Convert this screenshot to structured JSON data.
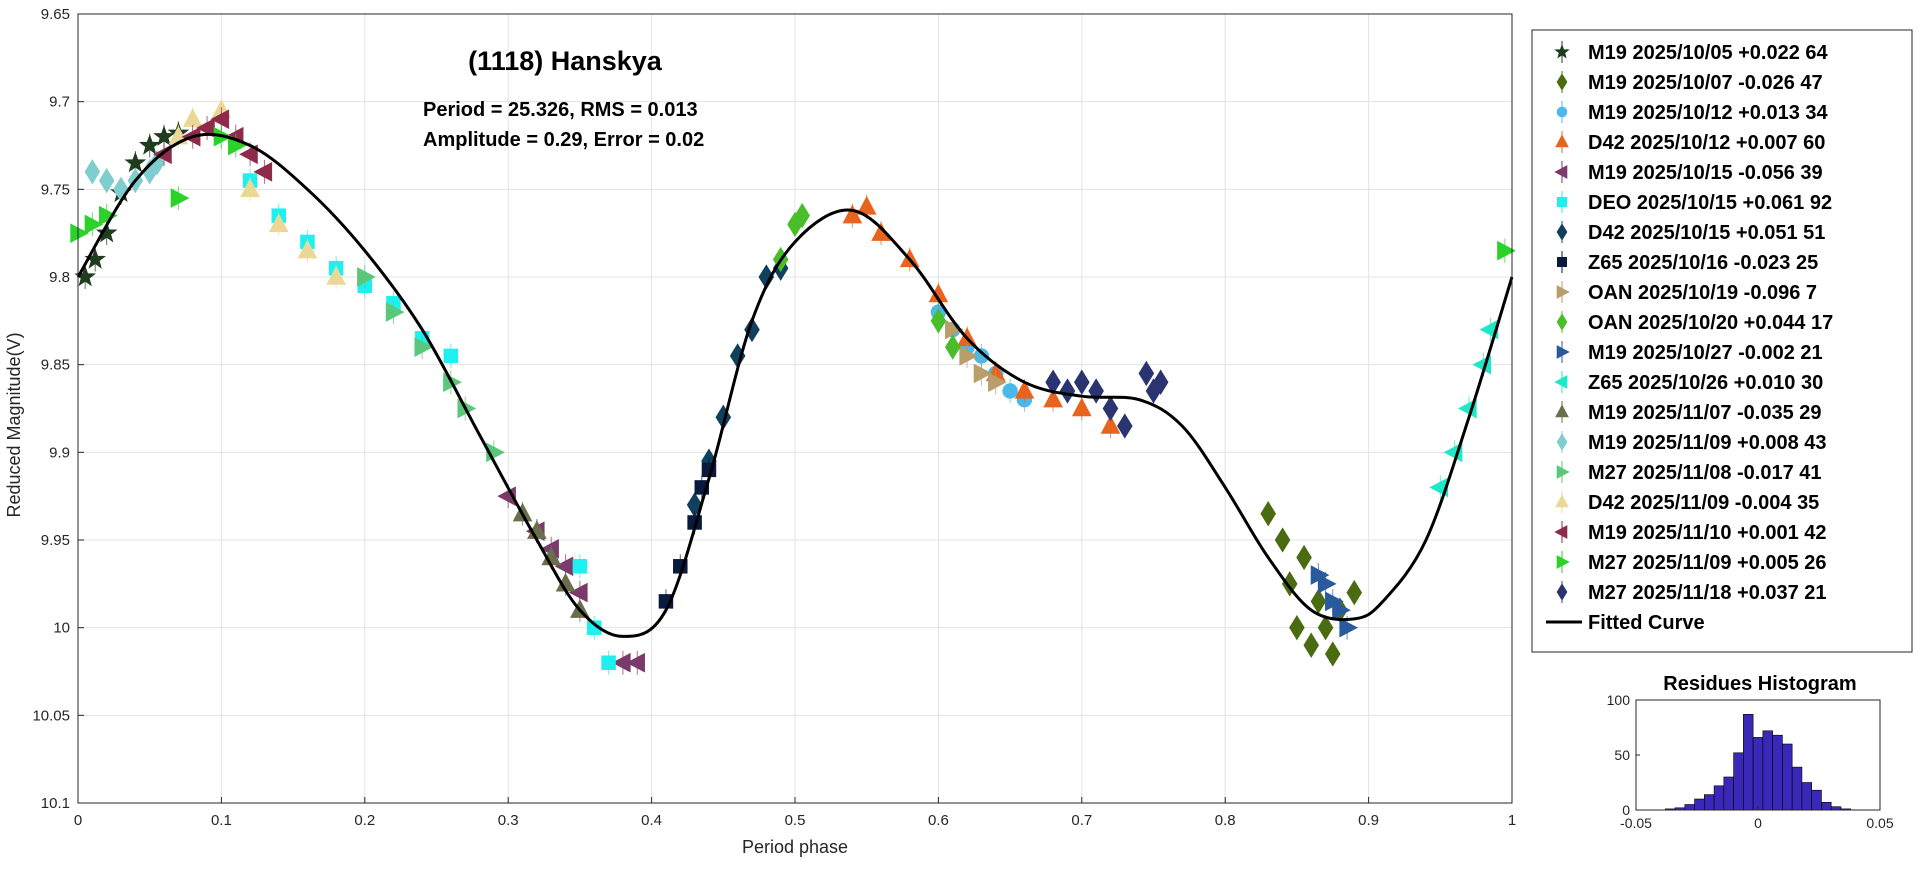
{
  "chart_data": [
    {
      "type": "scatter",
      "title": "(1118) Hanskya",
      "subtitle_lines": [
        "Period =  25.326, RMS = 0.013",
        "Amplitude = 0.29, Error = 0.02"
      ],
      "xlabel": "Period phase",
      "ylabel": "Reduced Magnitude(V)",
      "xlim": [
        0,
        1
      ],
      "ylim": [
        9.65,
        10.1
      ],
      "y_reversed": true,
      "grid": true,
      "xticks": [
        "0",
        "0.1",
        "0.2",
        "0.3",
        "0.4",
        "0.5",
        "0.6",
        "0.7",
        "0.8",
        "0.9",
        "1"
      ],
      "yticks": [
        "9.65",
        "9.7",
        "9.75",
        "9.8",
        "9.85",
        "9.9",
        "9.95",
        "10",
        "10.05",
        "10.1"
      ],
      "legend_position": "outside-right",
      "series": [
        {
          "name": "M19 2025/10/05   +0.022    64",
          "color": "#1e3d1e",
          "marker": "star",
          "x": [
            0.005,
            0.012,
            0.02,
            0.03,
            0.04,
            0.05,
            0.06,
            0.07
          ],
          "y": [
            9.8,
            9.79,
            9.775,
            9.752,
            9.735,
            9.725,
            9.72,
            9.718
          ]
        },
        {
          "name": "M19 2025/10/07   -0.026    47",
          "color": "#4b6b10",
          "marker": "diamond",
          "x": [
            0.83,
            0.84,
            0.845,
            0.85,
            0.855,
            0.86,
            0.865,
            0.87,
            0.875,
            0.88,
            0.89
          ],
          "y": [
            9.935,
            9.95,
            9.975,
            10.0,
            9.96,
            10.01,
            9.985,
            10.0,
            10.015,
            9.99,
            9.98
          ]
        },
        {
          "name": "M19 2025/10/12   +0.013    34",
          "color": "#4ab8e8",
          "marker": "circle",
          "x": [
            0.6,
            0.61,
            0.62,
            0.63,
            0.64,
            0.65,
            0.66
          ],
          "y": [
            9.82,
            9.83,
            9.84,
            9.845,
            9.855,
            9.865,
            9.87
          ]
        },
        {
          "name": "D42 2025/10/12   +0.007    60",
          "color": "#e8641e",
          "marker": "triangle-up",
          "x": [
            0.54,
            0.55,
            0.56,
            0.58,
            0.6,
            0.62,
            0.64,
            0.66,
            0.68,
            0.7,
            0.72
          ],
          "y": [
            9.765,
            9.76,
            9.775,
            9.79,
            9.81,
            9.835,
            9.855,
            9.865,
            9.87,
            9.875,
            9.885
          ]
        },
        {
          "name": "M19 2025/10/15   -0.056    39",
          "color": "#7a3a6a",
          "marker": "triangle-left",
          "x": [
            0.3,
            0.32,
            0.33,
            0.34,
            0.35,
            0.38,
            0.39
          ],
          "y": [
            9.925,
            9.945,
            9.955,
            9.965,
            9.98,
            10.02,
            10.02
          ]
        },
        {
          "name": "DEO 2025/10/15   +0.061    92",
          "color": "#1ef0f0",
          "marker": "square",
          "x": [
            0.12,
            0.14,
            0.16,
            0.18,
            0.2,
            0.22,
            0.24,
            0.26,
            0.35,
            0.36,
            0.37
          ],
          "y": [
            9.745,
            9.765,
            9.78,
            9.795,
            9.805,
            9.815,
            9.835,
            9.845,
            9.965,
            10.0,
            10.02
          ]
        },
        {
          "name": "D42 2025/10/15   +0.051    51",
          "color": "#10405e",
          "marker": "diamond",
          "x": [
            0.43,
            0.44,
            0.45,
            0.46,
            0.47,
            0.48,
            0.49
          ],
          "y": [
            9.93,
            9.905,
            9.88,
            9.845,
            9.83,
            9.8,
            9.795
          ]
        },
        {
          "name": "Z65 2025/10/16   -0.023    25",
          "color": "#0a1a3e",
          "marker": "square",
          "x": [
            0.41,
            0.42,
            0.43,
            0.435,
            0.44
          ],
          "y": [
            9.985,
            9.965,
            9.94,
            9.92,
            9.91
          ]
        },
        {
          "name": "OAN 2025/10/19   -0.096     7",
          "color": "#b89e6a",
          "marker": "triangle-right",
          "x": [
            0.61,
            0.62,
            0.63,
            0.64
          ],
          "y": [
            9.83,
            9.845,
            9.855,
            9.86
          ]
        },
        {
          "name": "OAN 2025/10/20   +0.044    17",
          "color": "#4abe2a",
          "marker": "diamond",
          "x": [
            0.49,
            0.5,
            0.505,
            0.6,
            0.61
          ],
          "y": [
            9.79,
            9.77,
            9.765,
            9.825,
            9.84
          ]
        },
        {
          "name": "M19 2025/10/27   -0.002    21",
          "color": "#2a5a9e",
          "marker": "triangle-right",
          "x": [
            0.865,
            0.87,
            0.875,
            0.88,
            0.885
          ],
          "y": [
            9.97,
            9.975,
            9.985,
            9.99,
            10.0
          ]
        },
        {
          "name": "Z65 2025/10/26   +0.010    30",
          "color": "#1ee8c8",
          "marker": "triangle-left",
          "x": [
            0.95,
            0.96,
            0.97,
            0.98,
            0.985
          ],
          "y": [
            9.92,
            9.9,
            9.875,
            9.85,
            9.83
          ]
        },
        {
          "name": "M19 2025/11/07   -0.035    29",
          "color": "#6a6e4a",
          "marker": "triangle-up",
          "x": [
            0.31,
            0.32,
            0.33,
            0.34,
            0.35
          ],
          "y": [
            9.935,
            9.945,
            9.96,
            9.975,
            9.99
          ]
        },
        {
          "name": "M19 2025/11/09   +0.008    43",
          "color": "#7ecece",
          "marker": "diamond",
          "x": [
            0.01,
            0.02,
            0.03,
            0.04,
            0.05,
            0.055
          ],
          "y": [
            9.74,
            9.745,
            9.75,
            9.745,
            9.74,
            9.735
          ]
        },
        {
          "name": "M27 2025/11/08   -0.017    41",
          "color": "#5ac87a",
          "marker": "triangle-right",
          "x": [
            0.2,
            0.22,
            0.24,
            0.26,
            0.27,
            0.29
          ],
          "y": [
            9.8,
            9.82,
            9.84,
            9.86,
            9.875,
            9.9
          ]
        },
        {
          "name": "D42 2025/11/09   -0.004    35",
          "color": "#ecd896",
          "marker": "triangle-up",
          "x": [
            0.07,
            0.08,
            0.1,
            0.12,
            0.14,
            0.16,
            0.18
          ],
          "y": [
            9.72,
            9.71,
            9.705,
            9.75,
            9.77,
            9.785,
            9.8
          ]
        },
        {
          "name": "M19 2025/11/10   +0.001    42",
          "color": "#8e2a4a",
          "marker": "triangle-left",
          "x": [
            0.06,
            0.08,
            0.09,
            0.1,
            0.11,
            0.12,
            0.13
          ],
          "y": [
            9.73,
            9.72,
            9.715,
            9.71,
            9.72,
            9.73,
            9.74
          ]
        },
        {
          "name": "M27 2025/11/09   +0.005    26",
          "color": "#2ad22a",
          "marker": "triangle-right",
          "x": [
            0.0,
            0.01,
            0.02,
            0.07,
            0.1,
            0.11,
            0.995
          ],
          "y": [
            9.775,
            9.77,
            9.765,
            9.755,
            9.72,
            9.725,
            9.785
          ]
        },
        {
          "name": "M27 2025/11/18   +0.037    21",
          "color": "#2a3470",
          "marker": "diamond",
          "x": [
            0.68,
            0.69,
            0.7,
            0.71,
            0.72,
            0.73,
            0.745,
            0.75,
            0.755
          ],
          "y": [
            9.86,
            9.865,
            9.86,
            9.865,
            9.875,
            9.885,
            9.855,
            9.865,
            9.86
          ]
        }
      ],
      "fitted_curve": {
        "name": "Fitted Curve",
        "color": "#000000",
        "x": [
          0.0,
          0.04,
          0.08,
          0.12,
          0.16,
          0.2,
          0.24,
          0.28,
          0.32,
          0.35,
          0.38,
          0.41,
          0.44,
          0.47,
          0.5,
          0.54,
          0.58,
          0.62,
          0.66,
          0.7,
          0.74,
          0.77,
          0.8,
          0.83,
          0.86,
          0.89,
          0.91,
          0.94,
          0.97,
          1.0
        ],
        "y": [
          9.8,
          9.745,
          9.72,
          9.725,
          9.75,
          9.785,
          9.83,
          9.89,
          9.95,
          9.99,
          10.005,
          9.99,
          9.915,
          9.825,
          9.78,
          9.762,
          9.79,
          9.835,
          9.86,
          9.868,
          9.87,
          9.885,
          9.92,
          9.96,
          9.99,
          9.995,
          9.985,
          9.95,
          9.88,
          9.8
        ]
      }
    },
    {
      "type": "bar",
      "title": "Residues Histogram",
      "xlim": [
        -0.05,
        0.05
      ],
      "ylim": [
        0,
        100
      ],
      "xticks": [
        "-0.05",
        "0",
        "0.05"
      ],
      "yticks": [
        "0",
        "50",
        "100"
      ],
      "color": "#3a28b8",
      "bin_centers": [
        -0.036,
        -0.032,
        -0.028,
        -0.024,
        -0.02,
        -0.016,
        -0.012,
        -0.008,
        -0.004,
        0.0,
        0.004,
        0.008,
        0.012,
        0.016,
        0.02,
        0.024,
        0.028,
        0.032,
        0.036
      ],
      "values": [
        1,
        2,
        5,
        10,
        14,
        22,
        30,
        52,
        87,
        66,
        72,
        68,
        60,
        39,
        25,
        18,
        7,
        3,
        1
      ]
    }
  ]
}
